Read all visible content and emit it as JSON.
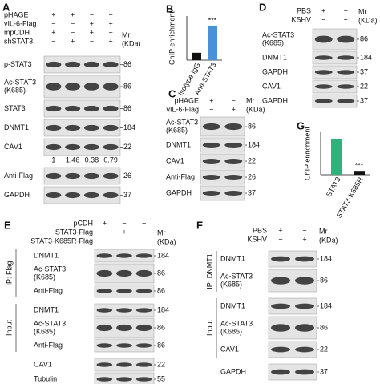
{
  "panels": [
    {
      "letter": "A",
      "conditions": [
        {
          "label": "pHAGE",
          "signs": [
            "+",
            "+",
            "−",
            "−"
          ]
        },
        {
          "label": "vIL-6-Flag",
          "signs": [
            "−",
            "−",
            "+",
            "+"
          ]
        },
        {
          "label": "mpCDH",
          "signs": [
            "+",
            "−",
            "+",
            "−"
          ]
        },
        {
          "label": "shSTAT3",
          "signs": [
            "−",
            "+",
            "−",
            "+"
          ]
        }
      ],
      "mr": [
        "Mr",
        "(KDa)"
      ],
      "rows": [
        {
          "label": [
            "p-STAT3"
          ],
          "mr": 86
        },
        {
          "label": [
            "Ac-STAT3",
            "(K685)"
          ],
          "mr": 86
        },
        {
          "label": [
            "STAT3"
          ],
          "mr": 86
        },
        {
          "label": [
            "DNMT1"
          ],
          "mr": 184
        },
        {
          "label": [
            "CAV1"
          ],
          "mr": 22,
          "notes": [
            1,
            1.46,
            0.38,
            0.79
          ]
        },
        {
          "label": [
            "Anti-Flag"
          ],
          "mr": 26
        },
        {
          "label": [
            "GAPDH"
          ],
          "mr": 37
        }
      ]
    },
    {
      "letter": "C",
      "conditions": [
        {
          "label": "pHAGE",
          "signs": [
            "+",
            "−"
          ]
        },
        {
          "label": "vIL-6-Flag",
          "signs": [
            "−",
            "+"
          ]
        }
      ],
      "mr": [
        "Mr",
        "(KDa)"
      ],
      "rows": [
        {
          "label": [
            "Ac-STAT3",
            "(K685)"
          ],
          "mr": 86
        },
        {
          "label": [
            "DNMT1"
          ],
          "mr": 184
        },
        {
          "label": [
            "CAV1"
          ],
          "mr": 22
        },
        {
          "label": [
            "Anti-Flag"
          ],
          "mr": 26
        },
        {
          "label": [
            "GAPDH"
          ],
          "mr": 37
        }
      ]
    },
    {
      "letter": "D",
      "conditions": [
        {
          "label": "PBS",
          "signs": [
            "+",
            "−"
          ]
        },
        {
          "label": "KSHV",
          "signs": [
            "−",
            "+"
          ]
        }
      ],
      "mr": [
        "Mr",
        "(KDa)"
      ],
      "rows": [
        {
          "label": [
            "Ac-STAT3",
            "(K685)"
          ],
          "mr": 86
        },
        {
          "label": [
            "DNMT1"
          ],
          "mr": 184
        },
        {
          "label": [
            "GAPDH"
          ],
          "mr": 37
        },
        {
          "label": [
            "CAV1"
          ],
          "mr": 22
        },
        {
          "label": [
            "GAPDH"
          ],
          "mr": 37
        }
      ]
    },
    {
      "letter": "E",
      "conditions": [
        {
          "label": "pCDH",
          "signs": [
            "+",
            "−",
            "−"
          ]
        },
        {
          "label": "STAT3-Flag",
          "signs": [
            "−",
            "+",
            "−"
          ]
        },
        {
          "label": "STAT3-K685R-Flag",
          "signs": [
            "−",
            "−",
            "+"
          ]
        }
      ],
      "mr": [
        "Mr",
        "(KDa)"
      ],
      "groups": [
        {
          "label": "IP: Flag",
          "rows": [
            {
              "label": [
                "DNMT1"
              ],
              "mr": 184
            },
            {
              "label": [
                "Ac-STAT3",
                "(K685)"
              ],
              "mr": 86
            },
            {
              "label": [
                "Anti-Flag"
              ],
              "mr": 86
            }
          ]
        },
        {
          "label": "Input",
          "rows": [
            {
              "label": [
                "DNMT1"
              ],
              "mr": 184
            },
            {
              "label": [
                "Ac-STAT3",
                "(K685)"
              ],
              "mr": 86
            },
            {
              "label": [
                "Anti-Flag"
              ],
              "mr": 86
            }
          ]
        }
      ],
      "rows": [
        {
          "label": [
            "CAV1"
          ],
          "mr": 22
        },
        {
          "label": [
            "Tubulin"
          ],
          "mr": 55
        }
      ]
    },
    {
      "letter": "F",
      "conditions": [
        {
          "label": "PBS",
          "signs": [
            "+",
            "−"
          ]
        },
        {
          "label": "KSHV",
          "signs": [
            "−",
            "+"
          ]
        }
      ],
      "mr": [
        "Mr",
        "(KDa)"
      ],
      "groups": [
        {
          "label": "IP: DNMT1",
          "rows": [
            {
              "label": [
                "DNMT1"
              ],
              "mr": 184
            },
            {
              "label": [
                "Ac-STAT3",
                "(K685)"
              ],
              "mr": 86
            }
          ]
        },
        {
          "label": "Input",
          "rows": [
            {
              "label": [
                "DNMT1"
              ],
              "mr": 184
            },
            {
              "label": [
                "Ac-STAT3",
                "(K685)"
              ],
              "mr": 86
            },
            {
              "label": [
                "CAV1"
              ],
              "mr": 22
            }
          ]
        }
      ],
      "rows": [
        {
          "label": [
            "GAPDH"
          ],
          "mr": 37
        }
      ]
    }
  ],
  "charts": [
    {
      "letter": "B",
      "type": "bar",
      "y_label": "ChIP enrichment",
      "categories": [
        "Isotype IgG",
        "Anti-STAT3"
      ],
      "values": [
        1,
        4.7
      ],
      "colors": [
        "#111111",
        "#4a90d9"
      ],
      "annotation": "***",
      "ylim": [
        0,
        6
      ]
    },
    {
      "letter": "G",
      "type": "bar",
      "y_label": "ChIP enrichment",
      "categories": [
        "STAT3",
        "STAT3-K685R"
      ],
      "values": [
        4.6,
        0.5
      ],
      "colors": [
        "#2db37a",
        "#111111"
      ],
      "annotation": "***",
      "ylim": [
        0,
        5.5
      ]
    }
  ]
}
